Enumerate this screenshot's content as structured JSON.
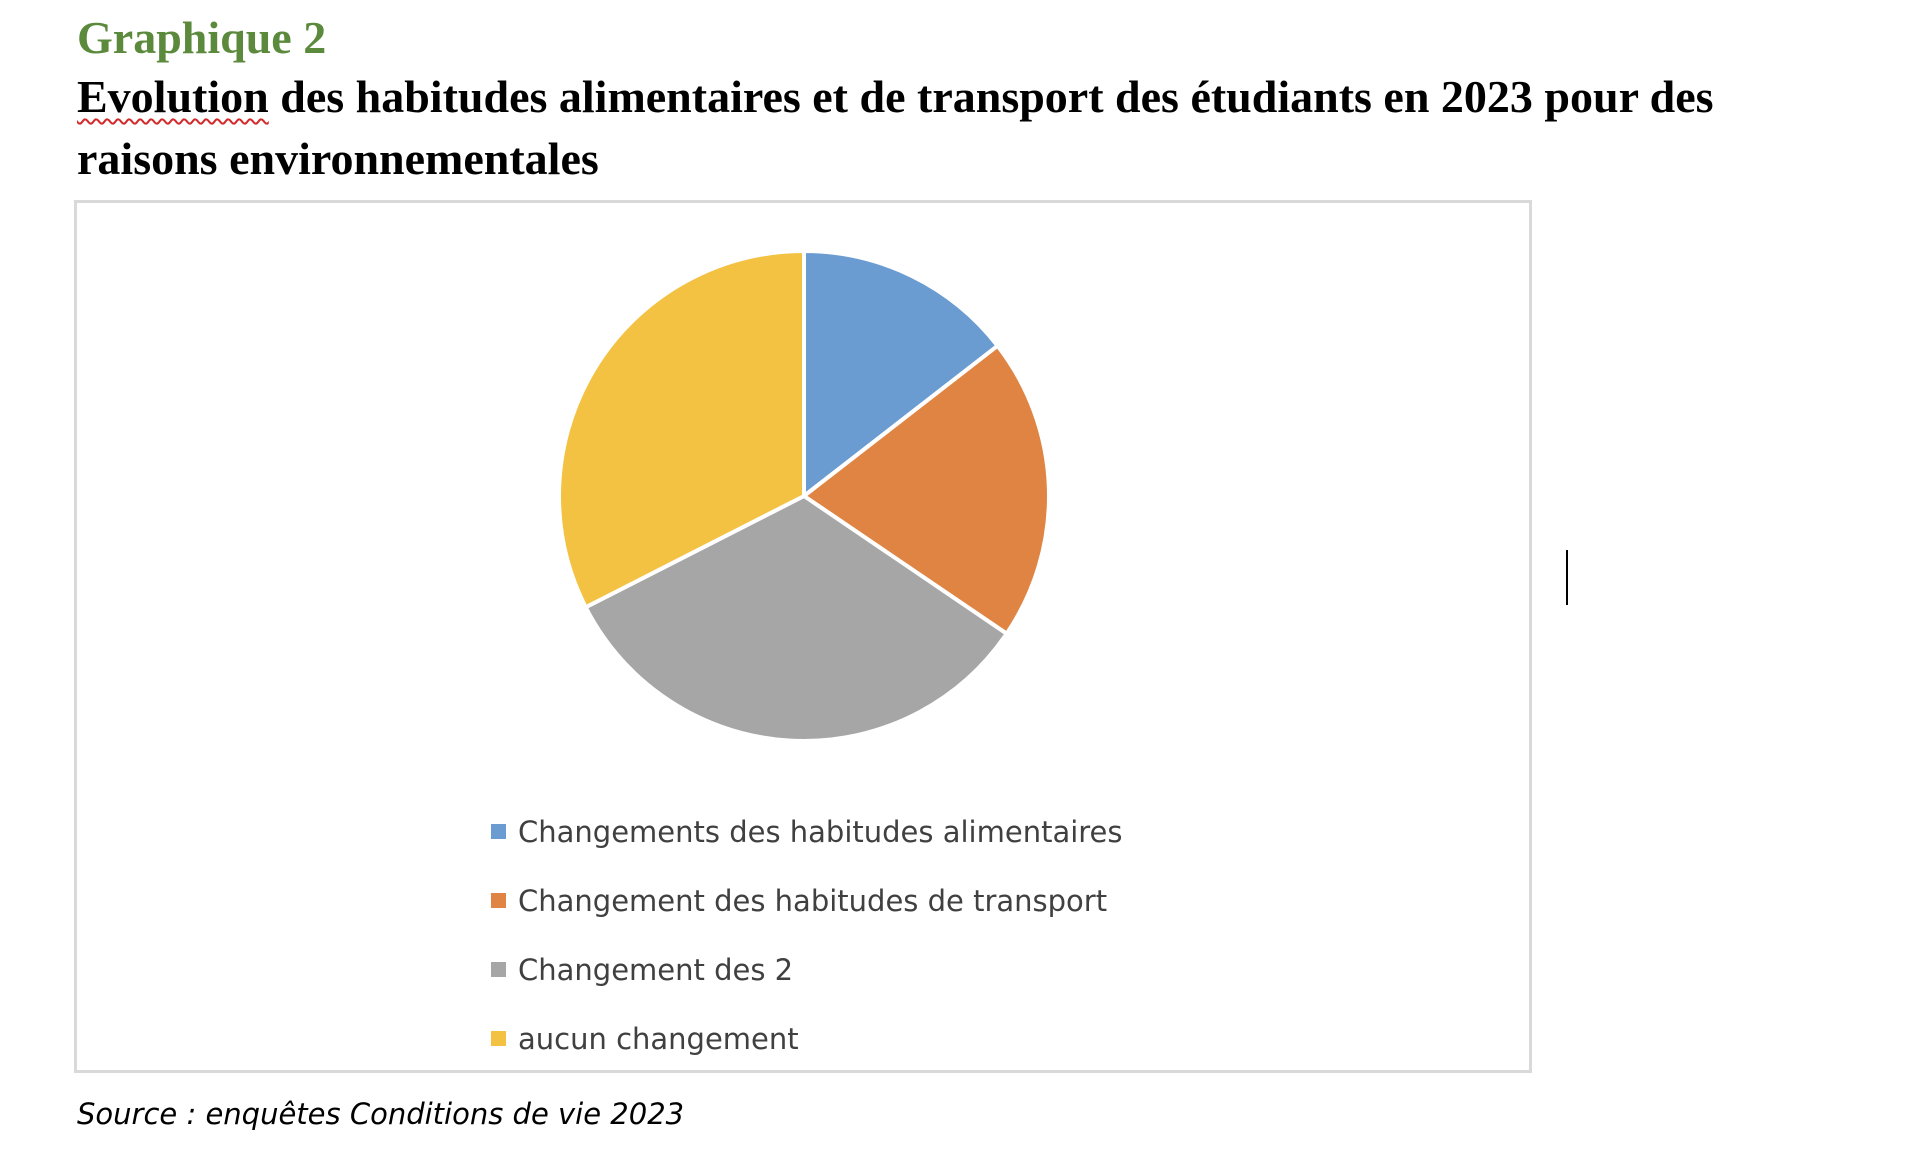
{
  "heading": "Graphique 2",
  "title": {
    "first_word": "Evolution",
    "rest": " des habitudes alimentaires et de transport des étudiants en 2023 pour des raisons environnementales"
  },
  "source": "Source : enquêtes Conditions de vie 2023",
  "chart_data": {
    "type": "pie",
    "categories": [
      "Changements des habitudes alimentaires",
      "Changement des habitudes de transport",
      "Changement des 2",
      "aucun changement"
    ],
    "values": [
      14.5,
      20,
      33,
      32.5
    ],
    "colors": [
      "#6a9bd1",
      "#e08443",
      "#a6a6a6",
      "#f3c243"
    ],
    "legend_position": "bottom",
    "start_angle_deg": 0,
    "direction": "clockwise"
  }
}
